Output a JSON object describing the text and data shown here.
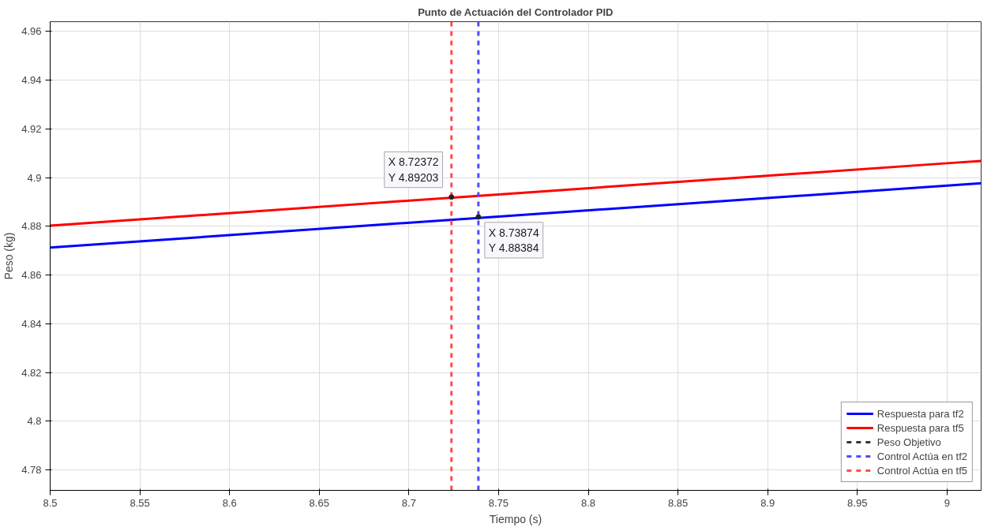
{
  "chart_data": {
    "type": "line",
    "title": "Punto de Actuación del Controlador PID",
    "xlabel": "Tiempo (s)",
    "ylabel": "Peso (kg)",
    "xlim": [
      8.5,
      9.019
    ],
    "ylim": [
      4.7716,
      4.964
    ],
    "xticks": [
      8.5,
      8.55,
      8.6,
      8.65,
      8.7,
      8.75,
      8.8,
      8.85,
      8.9,
      8.95,
      9
    ],
    "yticks": [
      4.78,
      4.8,
      4.82,
      4.84,
      4.86,
      4.88,
      4.9,
      4.92,
      4.94,
      4.96
    ],
    "grid": true,
    "legend": "bottom right",
    "line_style": "solid",
    "series": [
      {
        "name": "Respuesta para tf2",
        "color": "#0000ff",
        "x": [
          8.5,
          8.75,
          9.0,
          9.019
        ],
        "values": [
          4.8713,
          4.884,
          4.8967,
          4.8977
        ]
      },
      {
        "name": "Respuesta para tf5",
        "color": "#ff0000",
        "x": [
          8.5,
          8.75,
          9.0,
          9.019
        ],
        "values": [
          4.8803,
          4.8931,
          4.9059,
          4.9068
        ]
      },
      {
        "name": "Peso Objetivo",
        "color": "#333333",
        "line_style": "dashed"
      },
      {
        "name": "Control Actúa en tf2",
        "color": "#4d4dff",
        "line_style": "dashed",
        "x": [
          8.73874,
          8.73874
        ],
        "values": [
          4.7716,
          4.964
        ]
      },
      {
        "name": "Control Actúa en tf5",
        "color": "#ff4d4d",
        "line_style": "dashed",
        "x": [
          8.72372,
          8.72372
        ],
        "values": [
          4.7716,
          4.964
        ]
      }
    ],
    "annotations": [
      {
        "text": "X 8.72372\nY 4.89203",
        "x": 8.72372,
        "y": 4.89203
      },
      {
        "text": "X 8.73874\nY 4.88384",
        "x": 8.73874,
        "y": 4.88384
      }
    ]
  }
}
